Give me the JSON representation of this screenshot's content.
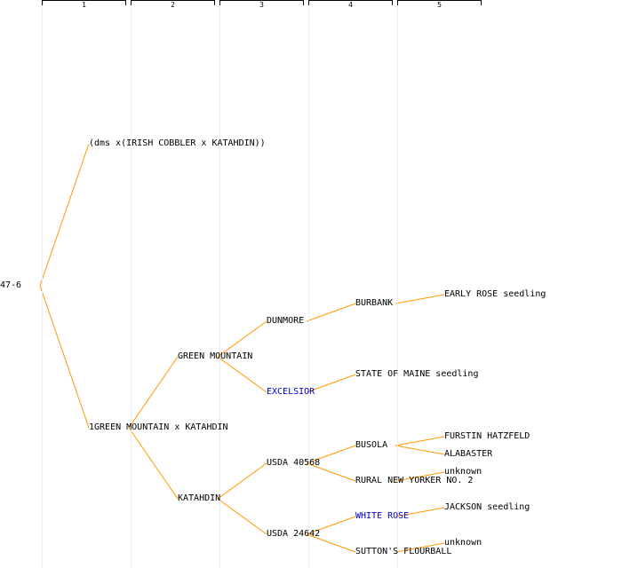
{
  "generations": [
    "1",
    "2",
    "3",
    "4",
    "5"
  ],
  "colors": {
    "edge": "#ff9900",
    "highlight": "#0000cc",
    "text": "#000000"
  },
  "nodes": [
    {
      "id": "root",
      "label": "47-6",
      "parent": null
    },
    {
      "id": "p1",
      "label": "(dms x(IRISH COBBLER x KATAHDIN))",
      "parent": "root"
    },
    {
      "id": "p2",
      "label": "1GREEN MOUNTAIN x KATAHDIN",
      "parent": "root"
    },
    {
      "id": "gm",
      "label": "GREEN MOUNTAIN",
      "parent": "p2"
    },
    {
      "id": "kat",
      "label": "KATAHDIN",
      "parent": "p2"
    },
    {
      "id": "dun",
      "label": "DUNMORE",
      "parent": "gm"
    },
    {
      "id": "exc",
      "label": "EXCELSIOR",
      "parent": "gm",
      "highlight": true
    },
    {
      "id": "u40568",
      "label": "USDA 40568",
      "parent": "kat"
    },
    {
      "id": "u24642",
      "label": "USDA 24642",
      "parent": "kat"
    },
    {
      "id": "bur",
      "label": "BURBANK",
      "parent": "dun"
    },
    {
      "id": "som",
      "label": "STATE OF MAINE seedling",
      "parent": "exc"
    },
    {
      "id": "bus",
      "label": "BUSOLA",
      "parent": "u40568"
    },
    {
      "id": "rny",
      "label": "RURAL NEW YORKER NO. 2",
      "parent": "u40568"
    },
    {
      "id": "wr",
      "label": "WHITE ROSE",
      "parent": "u24642",
      "highlight": true
    },
    {
      "id": "sut",
      "label": "SUTTON'S FLOURBALL",
      "parent": "u24642"
    },
    {
      "id": "ers",
      "label": "EARLY ROSE seedling",
      "parent": "bur"
    },
    {
      "id": "fh",
      "label": "FURSTIN HATZFELD",
      "parent": "bus"
    },
    {
      "id": "ala",
      "label": "ALABASTER",
      "parent": "bus"
    },
    {
      "id": "unk1",
      "label": "unknown",
      "parent": "rny"
    },
    {
      "id": "js",
      "label": "JACKSON seedling",
      "parent": "wr"
    },
    {
      "id": "unk2",
      "label": "unknown",
      "parent": "sut"
    }
  ]
}
